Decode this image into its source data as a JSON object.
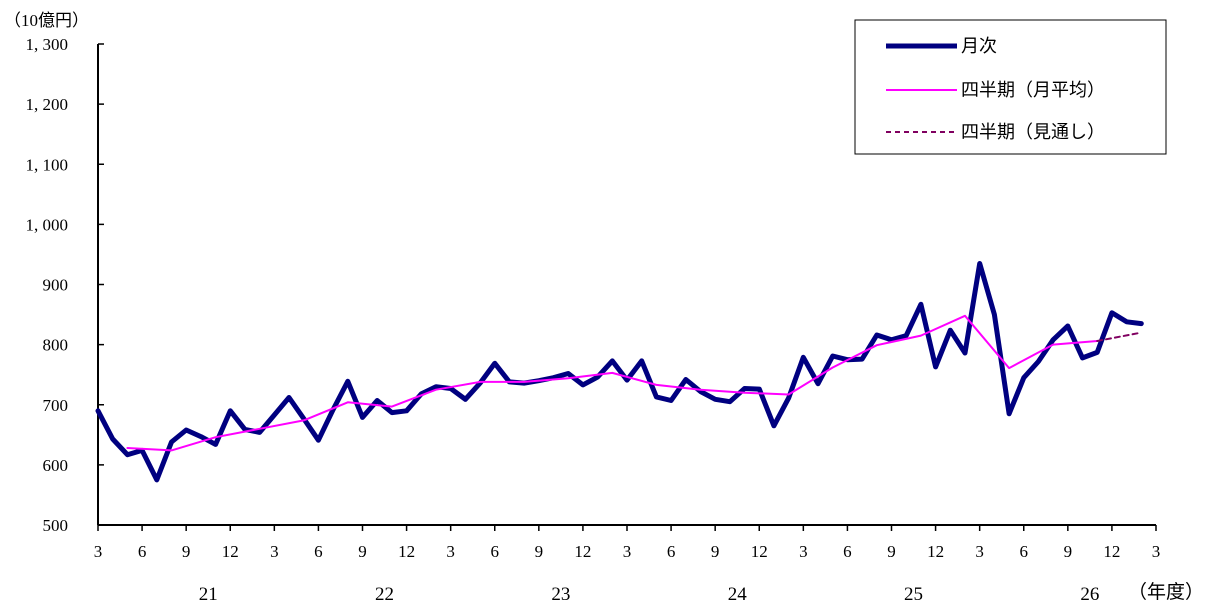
{
  "chart_data": {
    "type": "line",
    "y_unit_label": "（10億円）",
    "x_unit_label": "（年度）",
    "ylim": [
      500,
      1300
    ],
    "y_ticks": [
      500,
      600,
      700,
      800,
      900,
      1000,
      1100,
      1200,
      1300
    ],
    "y_tick_labels": [
      "500",
      "600",
      "700",
      "800",
      "900",
      "1, 000",
      "1, 100",
      "1, 200",
      "1, 300"
    ],
    "x_month_tick_labels": [
      "3",
      "6",
      "9",
      "12",
      "3",
      "6",
      "9",
      "12",
      "3",
      "6",
      "9",
      "12",
      "3",
      "6",
      "9",
      "12",
      "3",
      "6",
      "9",
      "12",
      "3",
      "6",
      "9",
      "12",
      "3"
    ],
    "x_year_labels": [
      {
        "label": "21",
        "month_index": 7.5
      },
      {
        "label": "22",
        "month_index": 19.5
      },
      {
        "label": "23",
        "month_index": 31.5
      },
      {
        "label": "24",
        "month_index": 43.5
      },
      {
        "label": "25",
        "month_index": 55.5
      },
      {
        "label": "26",
        "month_index": 67.5
      }
    ],
    "legend_position": "top-right",
    "series": [
      {
        "name": "月次",
        "style": "thick-solid",
        "color": "#000080",
        "x": [
          0,
          1,
          2,
          3,
          4,
          5,
          6,
          7,
          8,
          9,
          10,
          11,
          12,
          13,
          14,
          15,
          16,
          17,
          18,
          19,
          20,
          21,
          22,
          23,
          24,
          25,
          26,
          27,
          28,
          29,
          30,
          31,
          32,
          33,
          34,
          35,
          36,
          37,
          38,
          39,
          40,
          41,
          42,
          43,
          44,
          45,
          46,
          47,
          48,
          49,
          50,
          51,
          52,
          53,
          54,
          55,
          56,
          57,
          58,
          59,
          60,
          61,
          62,
          63,
          64,
          65,
          66,
          67,
          68,
          69,
          70,
          71,
          72
        ],
        "values": [
          690,
          643,
          617,
          624,
          575,
          638,
          658,
          647,
          634,
          690,
          659,
          654,
          683,
          712,
          677,
          641,
          692,
          739,
          679,
          707,
          687,
          690,
          718,
          730,
          727,
          709,
          736,
          769,
          738,
          736,
          740,
          745,
          752,
          733,
          746,
          773,
          741,
          773,
          713,
          707,
          742,
          722,
          709,
          705,
          727,
          726,
          665,
          711,
          779,
          735,
          781,
          775,
          776,
          816,
          808,
          815,
          867,
          763,
          824,
          786,
          935,
          850,
          685,
          745,
          772,
          808,
          831,
          778,
          787,
          853,
          838,
          835,
          null
        ]
      },
      {
        "name": "四半期（月平均）",
        "style": "thin-solid",
        "color": "#ff00ff",
        "x": [
          2,
          5,
          8,
          11,
          14,
          17,
          20,
          23,
          26,
          29,
          32,
          35,
          38,
          41,
          44,
          47,
          50,
          53,
          56,
          59,
          62,
          65,
          68
        ],
        "values": [
          628,
          624,
          646,
          660,
          674,
          704,
          697,
          725,
          738,
          738,
          744,
          753,
          733,
          725,
          720,
          717,
          762,
          799,
          815,
          848,
          761,
          800,
          806
        ]
      },
      {
        "name": "四半期（見通し）",
        "style": "dashed",
        "color": "#800060",
        "x": [
          68,
          71
        ],
        "values": [
          806,
          820
        ]
      }
    ]
  },
  "colors": {
    "monthly": "#000080",
    "quarterly": "#ff00ff",
    "outlook": "#800060",
    "axis": "#000000"
  }
}
